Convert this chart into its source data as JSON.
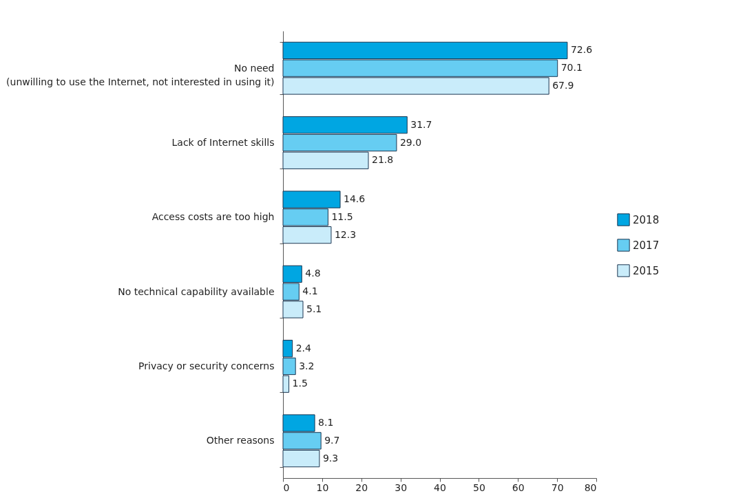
{
  "chart_data": {
    "type": "bar",
    "orientation": "horizontal",
    "categories": [
      "No need\n(unwilling to use the Internet, not interested in using it)",
      "Lack of Internet skills",
      "Access costs are too high",
      "No technical capability available",
      "Privacy or security concerns",
      "Other reasons"
    ],
    "series": [
      {
        "name": "2018",
        "color": "#00a6e2",
        "values": [
          72.6,
          31.7,
          14.6,
          4.8,
          2.4,
          8.1
        ],
        "value_labels": [
          "72.6",
          "31.7",
          "14.6",
          "4.8",
          "2.4",
          "8.1"
        ]
      },
      {
        "name": "2017",
        "color": "#66cdf2",
        "values": [
          70.1,
          29.0,
          11.5,
          4.1,
          3.2,
          9.7
        ],
        "value_labels": [
          "70.1",
          "29.0",
          "11.5",
          "4.1",
          "3.2",
          "9.7"
        ]
      },
      {
        "name": "2015",
        "color": "#c9ecfa",
        "values": [
          67.9,
          21.8,
          12.3,
          5.1,
          1.5,
          9.3
        ],
        "value_labels": [
          "67.9",
          "21.8",
          "12.3",
          "5.1",
          "1.5",
          "9.3"
        ]
      }
    ],
    "xlim": [
      0,
      80
    ],
    "xticks": [
      0,
      10,
      20,
      30,
      40,
      50,
      60,
      70,
      80
    ],
    "legend": "right",
    "grid": false
  }
}
